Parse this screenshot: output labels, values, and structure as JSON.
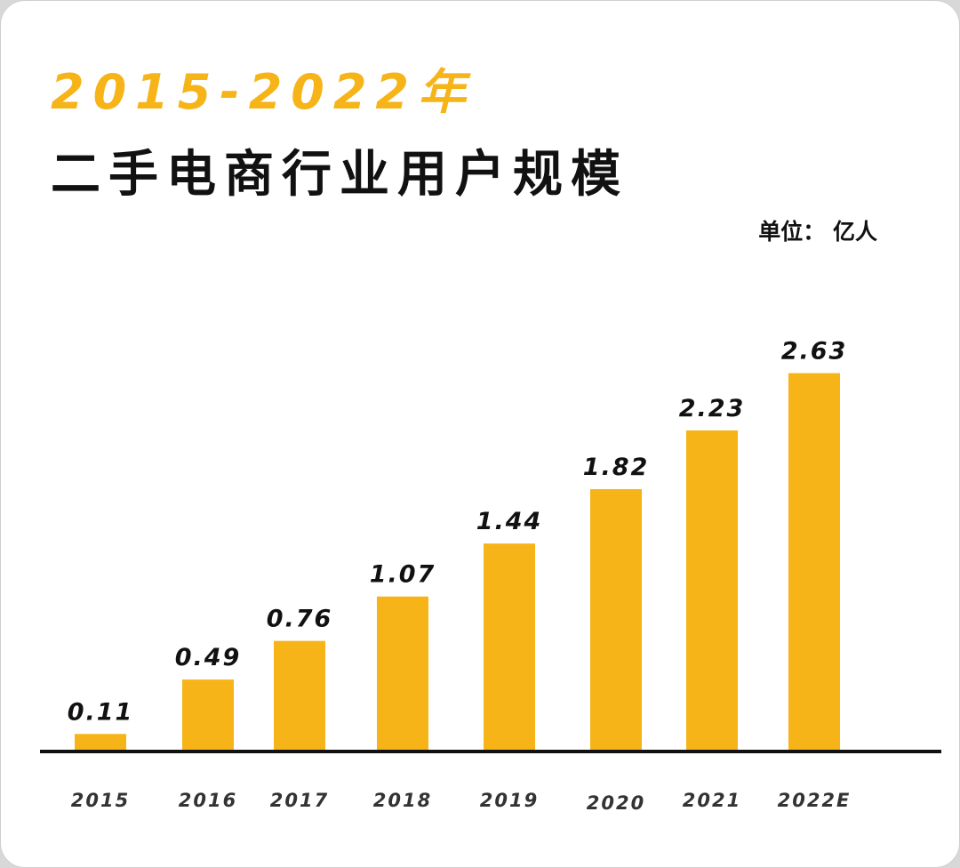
{
  "header": {
    "title_year": "2015-2022年",
    "title_main": "二手电商行业用户规模",
    "unit": "单位： 亿人"
  },
  "colors": {
    "bar": "#F6B418",
    "axis": "#111111",
    "title_accent": "#F6B418",
    "text": "#111111"
  },
  "chart_data": {
    "type": "bar",
    "title": "2015-2022年 二手电商行业用户规模",
    "ylabel": "单位： 亿人",
    "xlabel": "",
    "categories": [
      "2015",
      "2016",
      "2017",
      "2018",
      "2019",
      "2020",
      "2021",
      "2022E"
    ],
    "values": [
      0.11,
      0.49,
      0.76,
      1.07,
      1.44,
      1.82,
      2.23,
      2.63
    ],
    "value_labels": [
      "0.11",
      "0.49",
      "0.76",
      "1.07",
      "1.44",
      "1.82",
      "2.23",
      "2.63"
    ],
    "ylim": [
      0,
      2.8
    ],
    "grid": false,
    "legend": "none"
  }
}
